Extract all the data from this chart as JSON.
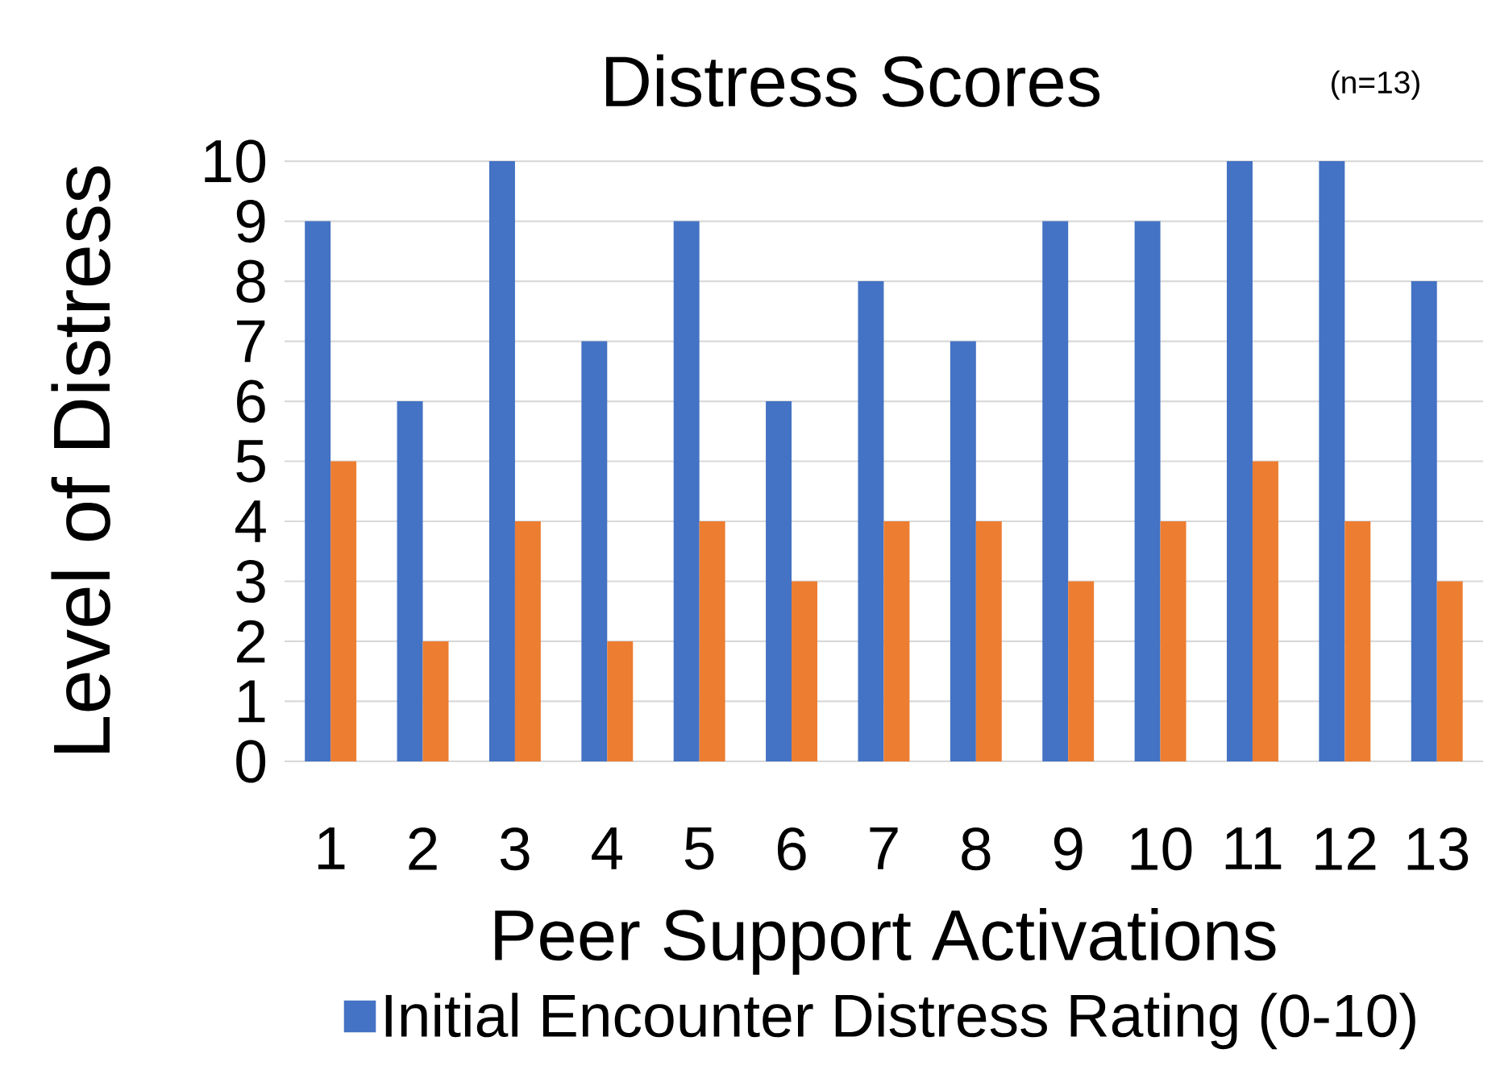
{
  "chart_data": {
    "type": "bar",
    "title": "Distress Scores",
    "xlabel": "Peer Support Activations",
    "ylabel": "Level of Distress",
    "annotations": [
      "(n=13)"
    ],
    "categories": [
      "1",
      "2",
      "3",
      "4",
      "5",
      "6",
      "7",
      "8",
      "9",
      "10",
      "11",
      "12",
      "13"
    ],
    "series": [
      {
        "name": "Initial Encounter Distress Rating (0-10)",
        "color": "#4472c4",
        "values": [
          9,
          6,
          10,
          7,
          9,
          6,
          8,
          7,
          9,
          9,
          10,
          10,
          8
        ]
      },
      {
        "color": "#ed7d31",
        "values": [
          5,
          2,
          4,
          2,
          4,
          3,
          4,
          4,
          3,
          4,
          5,
          4,
          3
        ]
      }
    ],
    "ylim": [
      0,
      10
    ],
    "yticks": [
      0,
      1,
      2,
      3,
      4,
      5,
      6,
      7,
      8,
      9,
      10
    ],
    "grid": "y",
    "legend": "bottom"
  }
}
